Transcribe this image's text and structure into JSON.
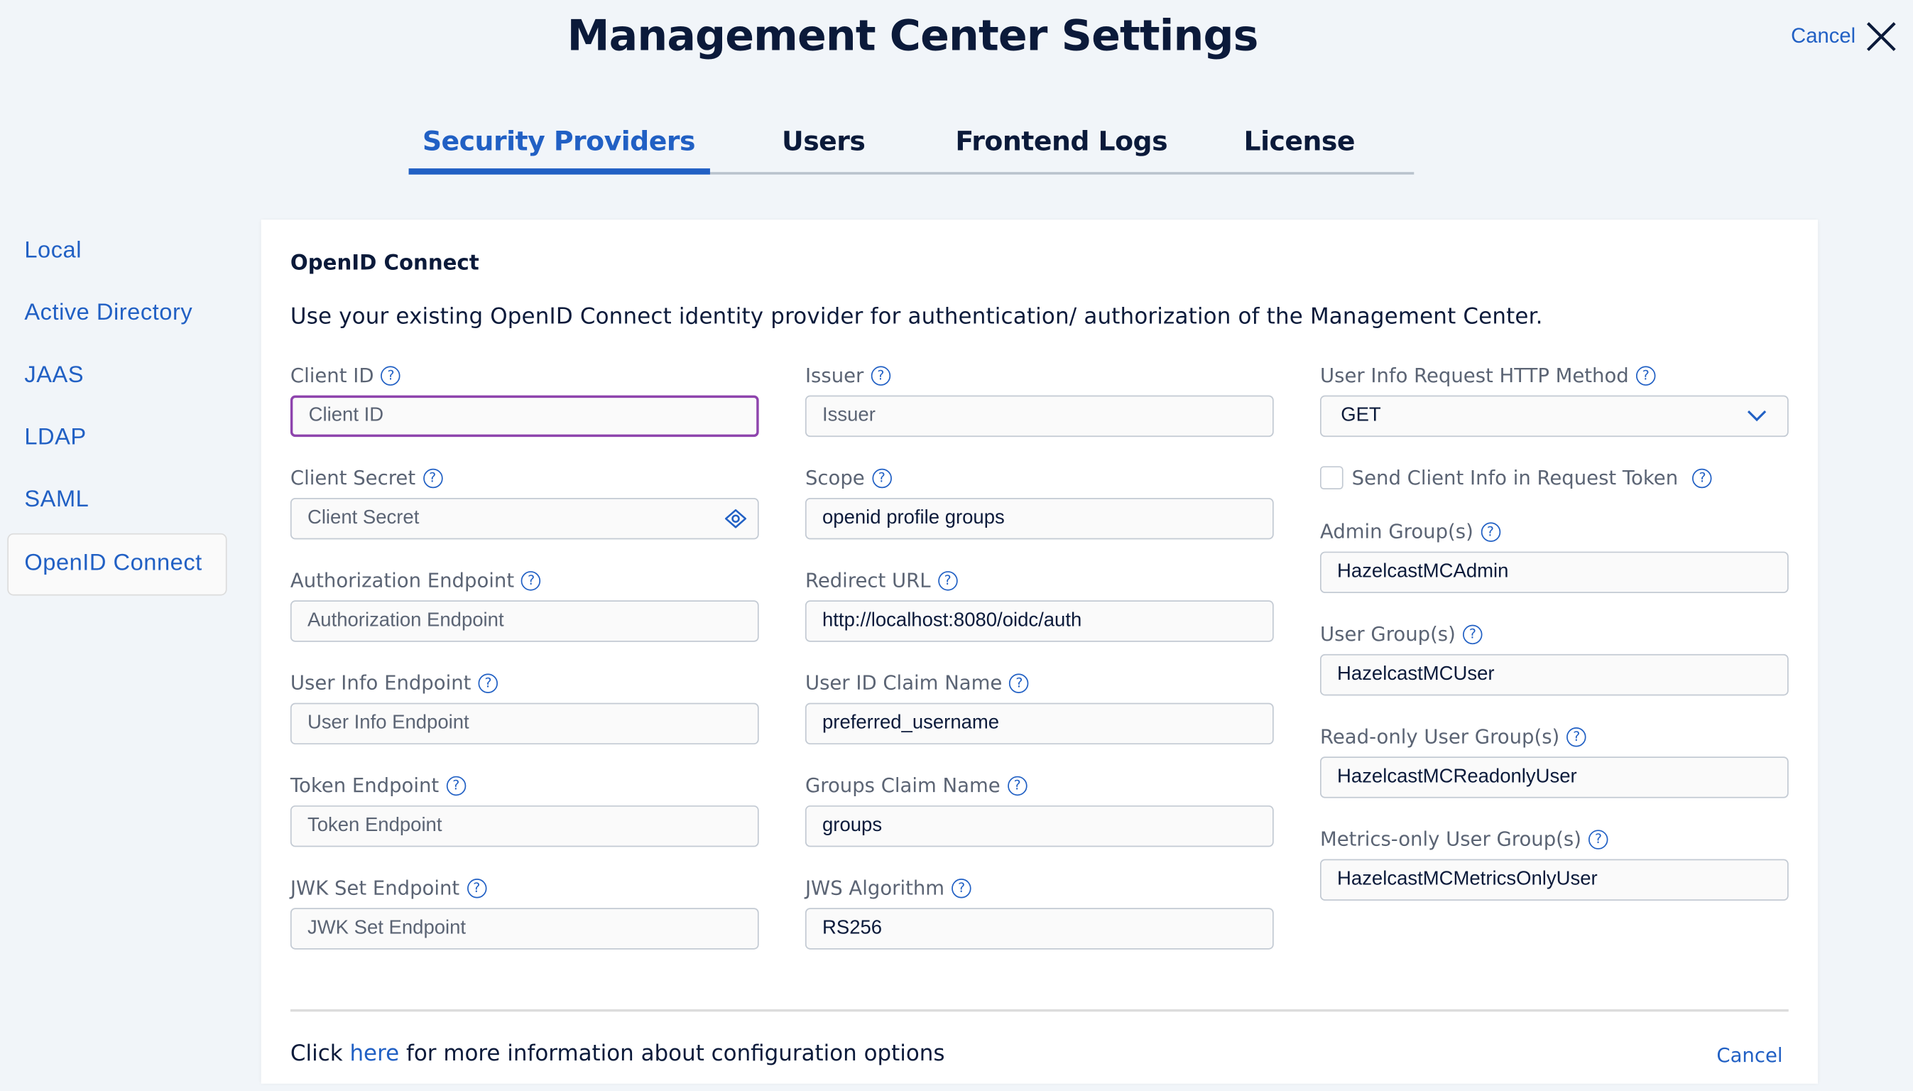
{
  "header": {
    "title": "Management Center Settings",
    "cancel_label": "Cancel"
  },
  "tabs": [
    {
      "label": "Security Providers",
      "active": true
    },
    {
      "label": "Users",
      "active": false
    },
    {
      "label": "Frontend Logs",
      "active": false
    },
    {
      "label": "License",
      "active": false
    }
  ],
  "sidebar": {
    "items": [
      {
        "label": "Local"
      },
      {
        "label": "Active Directory"
      },
      {
        "label": "JAAS"
      },
      {
        "label": "LDAP"
      },
      {
        "label": "SAML"
      },
      {
        "label": "OpenID Connect",
        "selected": true
      }
    ]
  },
  "panel": {
    "heading": "OpenID Connect",
    "description": "Use your existing OpenID Connect identity provider for authentication/ authorization of the Management Center.",
    "col1": [
      {
        "label": "Client ID",
        "placeholder": "Client ID",
        "value": ""
      },
      {
        "label": "Client Secret",
        "placeholder": "Client Secret",
        "value": ""
      },
      {
        "label": "Authorization Endpoint",
        "placeholder": "Authorization Endpoint",
        "value": ""
      },
      {
        "label": "User Info Endpoint",
        "placeholder": "User Info Endpoint",
        "value": ""
      },
      {
        "label": "Token Endpoint",
        "placeholder": "Token Endpoint",
        "value": ""
      },
      {
        "label": "JWK Set Endpoint",
        "placeholder": "JWK Set Endpoint",
        "value": ""
      }
    ],
    "col2": [
      {
        "label": "Issuer",
        "placeholder": "Issuer",
        "value": ""
      },
      {
        "label": "Scope",
        "value": "openid profile groups"
      },
      {
        "label": "Redirect URL",
        "value": "http://localhost:8080/oidc/auth"
      },
      {
        "label": "User ID Claim Name",
        "value": "preferred_username"
      },
      {
        "label": "Groups Claim Name",
        "value": "groups"
      },
      {
        "label": "JWS Algorithm",
        "value": "RS256"
      }
    ],
    "col3": {
      "http_method": {
        "label": "User Info Request HTTP Method",
        "value": "GET"
      },
      "send_client_info": {
        "label": "Send Client Info in Request Token",
        "checked": false
      },
      "groups": [
        {
          "label": "Admin Group(s)",
          "value": "HazelcastMCAdmin"
        },
        {
          "label": "User Group(s)",
          "value": "HazelcastMCUser"
        },
        {
          "label": "Read-only User Group(s)",
          "value": "HazelcastMCReadonlyUser"
        },
        {
          "label": "Metrics-only User Group(s)",
          "value": "HazelcastMCMetricsOnlyUser"
        }
      ]
    },
    "help_glyph": "?",
    "footer": {
      "prefix": "Click ",
      "link": "here",
      "suffix": " for more information about configuration options",
      "cancel_label": "Cancel"
    }
  },
  "colors": {
    "accent": "#2160c4",
    "focus": "#8e44ad",
    "text": "#0b1a3a",
    "background": "#f1f5f9"
  }
}
